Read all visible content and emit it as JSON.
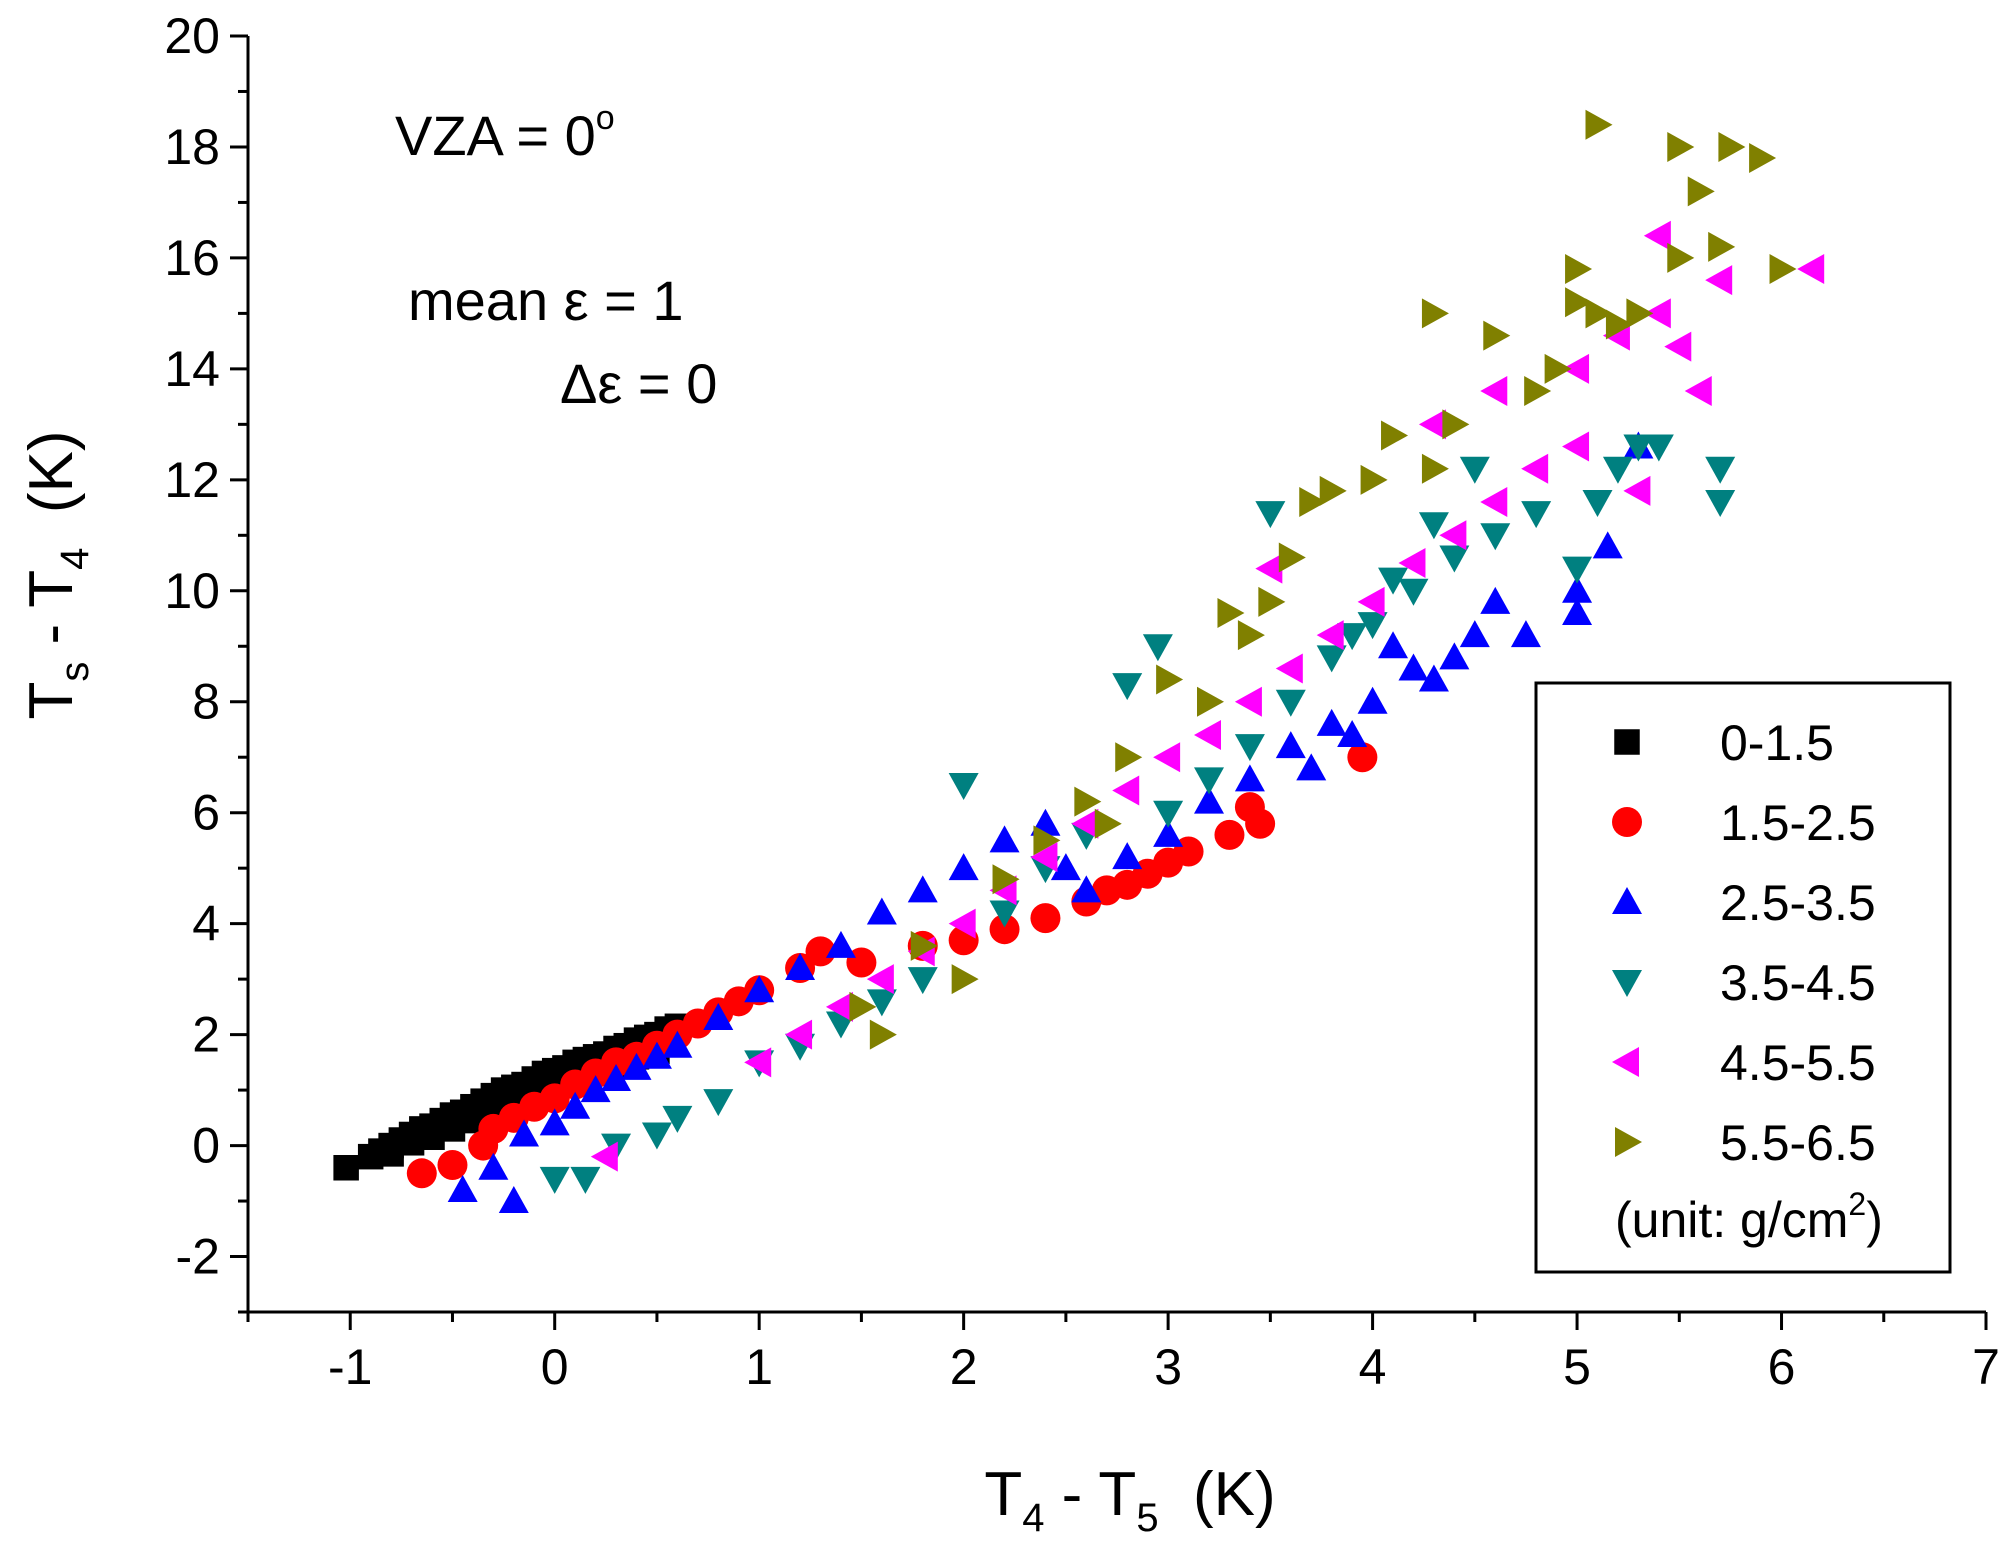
{
  "chart_data": {
    "type": "scatter",
    "title": "",
    "xlabel": {
      "main": "T",
      "sub1": "4",
      "mid": " - T",
      "sub2": "5",
      "unit": "(K)"
    },
    "ylabel": {
      "main": "T",
      "sub1": "s",
      "mid": " - T",
      "sub2": "4",
      "unit": "(K)"
    },
    "xlim": [
      -1.5,
      7
    ],
    "ylim": [
      -3,
      20
    ],
    "xticks": [
      "-1",
      "0",
      "1",
      "2",
      "3",
      "4",
      "5",
      "6",
      "7"
    ],
    "yticks": [
      "-2",
      "0",
      "2",
      "4",
      "6",
      "8",
      "10",
      "12",
      "14",
      "16",
      "18",
      "20"
    ],
    "annotations": {
      "vza": "VZA = 0",
      "vza_sup": "o",
      "mean_eps": "mean ε = 1",
      "delta_eps": "Δε = 0"
    },
    "legend": {
      "position": "right",
      "unit_text": "(unit: g/cm",
      "unit_sup": "2",
      "unit_close": ")"
    },
    "series": [
      {
        "name": "0-1.5",
        "marker": "square",
        "color": "#000000",
        "points": [
          [
            -1.02,
            -0.4
          ],
          [
            -0.9,
            -0.2
          ],
          [
            -0.85,
            -0.1
          ],
          [
            -0.8,
            0.0
          ],
          [
            -0.75,
            0.1
          ],
          [
            -0.7,
            0.2
          ],
          [
            -0.65,
            0.3
          ],
          [
            -0.6,
            0.35
          ],
          [
            -0.55,
            0.45
          ],
          [
            -0.5,
            0.55
          ],
          [
            -0.45,
            0.6
          ],
          [
            -0.4,
            0.7
          ],
          [
            -0.35,
            0.8
          ],
          [
            -0.3,
            0.9
          ],
          [
            -0.25,
            1.0
          ],
          [
            -0.2,
            1.05
          ],
          [
            -0.15,
            1.1
          ],
          [
            -0.1,
            1.2
          ],
          [
            -0.05,
            1.3
          ],
          [
            0.0,
            1.35
          ],
          [
            0.05,
            1.4
          ],
          [
            0.1,
            1.5
          ],
          [
            0.15,
            1.55
          ],
          [
            0.2,
            1.6
          ],
          [
            0.25,
            1.65
          ],
          [
            0.3,
            1.75
          ],
          [
            0.35,
            1.8
          ],
          [
            0.4,
            1.9
          ],
          [
            0.45,
            1.95
          ],
          [
            0.5,
            2.0
          ],
          [
            0.55,
            2.1
          ],
          [
            0.6,
            2.15
          ],
          [
            -0.8,
            -0.15
          ],
          [
            -0.7,
            0.05
          ],
          [
            -0.6,
            0.15
          ],
          [
            -0.5,
            0.3
          ],
          [
            -0.4,
            0.45
          ],
          [
            -0.3,
            0.6
          ],
          [
            -0.2,
            0.75
          ],
          [
            -0.1,
            0.9
          ],
          [
            0.0,
            1.05
          ],
          [
            0.1,
            1.2
          ],
          [
            0.2,
            1.3
          ],
          [
            0.3,
            1.45
          ],
          [
            0.4,
            1.6
          ],
          [
            0.5,
            1.7
          ]
        ]
      },
      {
        "name": "1.5-2.5",
        "marker": "circle",
        "color": "#ff0000",
        "points": [
          [
            -0.65,
            -0.5
          ],
          [
            -0.5,
            -0.35
          ],
          [
            -0.35,
            0.0
          ],
          [
            -0.3,
            0.3
          ],
          [
            -0.2,
            0.5
          ],
          [
            -0.1,
            0.7
          ],
          [
            0.0,
            0.85
          ],
          [
            0.1,
            1.1
          ],
          [
            0.2,
            1.3
          ],
          [
            0.3,
            1.5
          ],
          [
            0.4,
            1.6
          ],
          [
            0.5,
            1.8
          ],
          [
            0.6,
            2.0
          ],
          [
            0.7,
            2.2
          ],
          [
            0.8,
            2.4
          ],
          [
            0.9,
            2.6
          ],
          [
            1.0,
            2.8
          ],
          [
            1.2,
            3.2
          ],
          [
            1.3,
            3.5
          ],
          [
            1.5,
            3.3
          ],
          [
            1.8,
            3.6
          ],
          [
            2.0,
            3.7
          ],
          [
            2.2,
            3.9
          ],
          [
            2.4,
            4.1
          ],
          [
            2.6,
            4.4
          ],
          [
            2.8,
            4.7
          ],
          [
            3.0,
            5.1
          ],
          [
            3.1,
            5.3
          ],
          [
            3.3,
            5.6
          ],
          [
            3.4,
            6.1
          ],
          [
            3.45,
            5.8
          ],
          [
            3.95,
            7.0
          ],
          [
            2.9,
            4.9
          ],
          [
            2.7,
            4.6
          ]
        ]
      },
      {
        "name": "2.5-3.5",
        "marker": "triangle-up",
        "color": "#0000ff",
        "points": [
          [
            -0.45,
            -0.8
          ],
          [
            -0.2,
            -1.0
          ],
          [
            -0.3,
            -0.4
          ],
          [
            -0.15,
            0.2
          ],
          [
            0.0,
            0.4
          ],
          [
            0.1,
            0.7
          ],
          [
            0.2,
            1.0
          ],
          [
            0.3,
            1.2
          ],
          [
            0.4,
            1.4
          ],
          [
            0.5,
            1.6
          ],
          [
            0.6,
            1.8
          ],
          [
            0.8,
            2.3
          ],
          [
            1.0,
            2.8
          ],
          [
            1.2,
            3.2
          ],
          [
            1.4,
            3.6
          ],
          [
            1.6,
            4.2
          ],
          [
            1.8,
            4.6
          ],
          [
            2.0,
            5.0
          ],
          [
            2.2,
            5.5
          ],
          [
            2.4,
            5.8
          ],
          [
            2.5,
            5.0
          ],
          [
            2.6,
            4.6
          ],
          [
            2.8,
            5.2
          ],
          [
            3.0,
            5.6
          ],
          [
            3.2,
            6.2
          ],
          [
            3.4,
            6.6
          ],
          [
            3.6,
            7.2
          ],
          [
            3.8,
            7.6
          ],
          [
            4.0,
            8.0
          ],
          [
            4.2,
            8.6
          ],
          [
            4.4,
            8.8
          ],
          [
            4.5,
            9.2
          ],
          [
            4.6,
            9.8
          ],
          [
            4.75,
            9.2
          ],
          [
            5.0,
            10.0
          ],
          [
            5.0,
            9.6
          ],
          [
            5.15,
            10.8
          ],
          [
            5.3,
            12.6
          ],
          [
            4.3,
            8.4
          ],
          [
            4.1,
            9.0
          ],
          [
            3.9,
            7.4
          ],
          [
            3.7,
            6.8
          ]
        ]
      },
      {
        "name": "3.5-4.5",
        "marker": "triangle-down",
        "color": "#008080",
        "points": [
          [
            0.0,
            -0.6
          ],
          [
            0.15,
            -0.6
          ],
          [
            0.3,
            0.0
          ],
          [
            0.5,
            0.2
          ],
          [
            0.6,
            0.5
          ],
          [
            0.8,
            0.8
          ],
          [
            1.0,
            1.5
          ],
          [
            1.2,
            1.8
          ],
          [
            1.4,
            2.2
          ],
          [
            1.6,
            2.6
          ],
          [
            1.8,
            3.0
          ],
          [
            2.0,
            6.5
          ],
          [
            2.2,
            4.2
          ],
          [
            2.4,
            5.0
          ],
          [
            2.6,
            5.6
          ],
          [
            2.8,
            8.3
          ],
          [
            2.95,
            9.0
          ],
          [
            3.0,
            6.0
          ],
          [
            3.2,
            6.6
          ],
          [
            3.4,
            7.2
          ],
          [
            3.6,
            8.0
          ],
          [
            3.8,
            8.8
          ],
          [
            3.5,
            11.4
          ],
          [
            4.0,
            9.4
          ],
          [
            4.2,
            10.0
          ],
          [
            4.4,
            10.6
          ],
          [
            4.6,
            11.0
          ],
          [
            4.8,
            11.4
          ],
          [
            5.0,
            10.4
          ],
          [
            5.2,
            12.2
          ],
          [
            5.3,
            12.6
          ],
          [
            5.4,
            12.6
          ],
          [
            5.7,
            11.6
          ],
          [
            5.7,
            12.2
          ],
          [
            4.3,
            11.2
          ],
          [
            4.1,
            10.2
          ],
          [
            3.9,
            9.2
          ],
          [
            4.5,
            12.2
          ],
          [
            5.1,
            11.6
          ]
        ]
      },
      {
        "name": "4.5-5.5",
        "marker": "triangle-left",
        "color": "#ff00ff",
        "points": [
          [
            0.25,
            -0.2
          ],
          [
            1.0,
            1.5
          ],
          [
            1.2,
            2.0
          ],
          [
            1.4,
            2.5
          ],
          [
            1.6,
            3.0
          ],
          [
            1.8,
            3.5
          ],
          [
            2.0,
            4.0
          ],
          [
            2.2,
            4.6
          ],
          [
            2.4,
            5.2
          ],
          [
            2.6,
            5.8
          ],
          [
            2.8,
            6.4
          ],
          [
            3.0,
            7.0
          ],
          [
            3.2,
            7.4
          ],
          [
            3.4,
            8.0
          ],
          [
            3.6,
            8.6
          ],
          [
            3.8,
            9.2
          ],
          [
            4.0,
            9.8
          ],
          [
            4.2,
            10.5
          ],
          [
            4.4,
            11.0
          ],
          [
            4.6,
            11.6
          ],
          [
            4.8,
            12.2
          ],
          [
            5.0,
            12.6
          ],
          [
            5.0,
            14.0
          ],
          [
            5.2,
            14.6
          ],
          [
            5.4,
            15.0
          ],
          [
            5.4,
            16.4
          ],
          [
            5.5,
            14.4
          ],
          [
            5.6,
            13.6
          ],
          [
            5.7,
            15.6
          ],
          [
            6.15,
            15.8
          ],
          [
            3.5,
            10.4
          ],
          [
            4.3,
            13.0
          ],
          [
            4.6,
            13.6
          ],
          [
            5.3,
            11.8
          ]
        ]
      },
      {
        "name": "5.5-6.5",
        "marker": "triangle-right",
        "color": "#808000",
        "points": [
          [
            1.5,
            2.5
          ],
          [
            1.6,
            2.0
          ],
          [
            1.8,
            3.6
          ],
          [
            2.0,
            3.0
          ],
          [
            2.2,
            4.8
          ],
          [
            2.4,
            5.5
          ],
          [
            2.6,
            6.2
          ],
          [
            2.8,
            7.0
          ],
          [
            3.0,
            8.4
          ],
          [
            3.2,
            8.0
          ],
          [
            3.4,
            9.2
          ],
          [
            3.5,
            9.8
          ],
          [
            3.6,
            10.6
          ],
          [
            3.7,
            11.6
          ],
          [
            3.8,
            11.8
          ],
          [
            4.0,
            12.0
          ],
          [
            4.1,
            12.8
          ],
          [
            4.3,
            12.2
          ],
          [
            4.4,
            13.0
          ],
          [
            4.6,
            14.6
          ],
          [
            4.8,
            13.6
          ],
          [
            4.9,
            14.0
          ],
          [
            5.0,
            15.2
          ],
          [
            5.0,
            15.8
          ],
          [
            5.1,
            15.0
          ],
          [
            5.2,
            14.8
          ],
          [
            5.3,
            15.0
          ],
          [
            5.5,
            16.0
          ],
          [
            5.5,
            18.0
          ],
          [
            5.6,
            17.2
          ],
          [
            5.7,
            16.2
          ],
          [
            5.75,
            18.0
          ],
          [
            5.9,
            17.8
          ],
          [
            6.0,
            15.8
          ],
          [
            5.1,
            18.4
          ],
          [
            4.3,
            15.0
          ],
          [
            3.3,
            9.6
          ],
          [
            2.7,
            5.8
          ]
        ]
      }
    ]
  }
}
